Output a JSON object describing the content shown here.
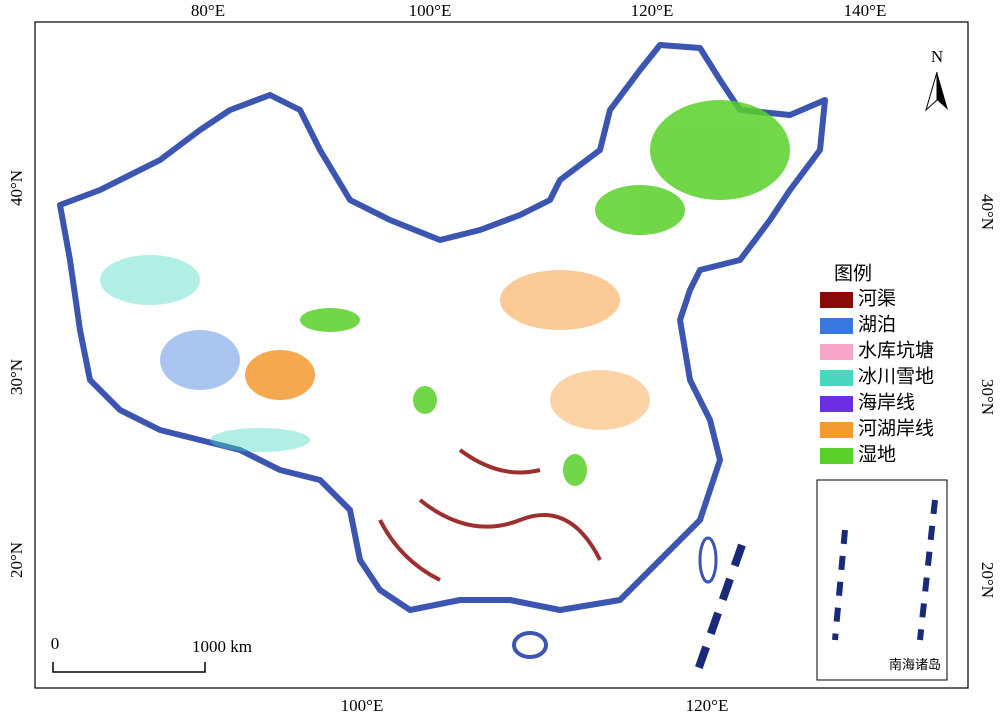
{
  "map": {
    "top_labels": [
      "80°E",
      "100°E",
      "120°E",
      "140°E"
    ],
    "bottom_labels": [
      "100°E",
      "120°E"
    ],
    "left_labels": [
      "40°N",
      "30°N",
      "20°N"
    ],
    "right_labels": [
      "40°N",
      "30°N",
      "20°N"
    ],
    "north": "N",
    "legend": {
      "title": "图例",
      "items": [
        {
          "label": "河渠",
          "color": "#8b0a0a"
        },
        {
          "label": "湖泊",
          "color": "#3a78e0"
        },
        {
          "label": "水库坑塘",
          "color": "#f5a6c8"
        },
        {
          "label": "冰川雪地",
          "color": "#48d8c0"
        },
        {
          "label": "海岸线",
          "color": "#6a2ee0"
        },
        {
          "label": "河湖岸线",
          "color": "#f59a30"
        },
        {
          "label": "湿地",
          "color": "#5ad02a"
        }
      ]
    },
    "scale": {
      "start": "0",
      "end": "1000 km"
    },
    "inset_label": "南海诸岛"
  }
}
